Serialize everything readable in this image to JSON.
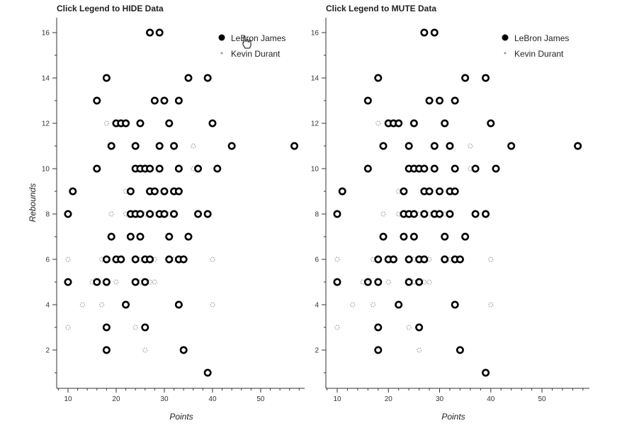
{
  "colors": {
    "lebron": "#000000",
    "durant": "#999999",
    "axis": "#333333"
  },
  "chart_data": [
    {
      "type": "scatter",
      "title": "Click Legend to HIDE Data",
      "xlabel": "Points",
      "ylabel": "Rebounds",
      "xlim": [
        8,
        58
      ],
      "ylim": [
        0,
        17
      ],
      "xticks": [
        10,
        20,
        30,
        40,
        50
      ],
      "yticks": [
        2,
        4,
        6,
        8,
        10,
        12,
        14,
        16
      ],
      "legend_position": "top-right",
      "legend": [
        "LeBron James",
        "Kevin Durant"
      ],
      "series": [
        {
          "name": "LeBron James",
          "points": [
            [
              27,
              16
            ],
            [
              29,
              16
            ],
            [
              18,
              14
            ],
            [
              35,
              14
            ],
            [
              39,
              14
            ],
            [
              16,
              13
            ],
            [
              28,
              13
            ],
            [
              30,
              13
            ],
            [
              33,
              13
            ],
            [
              20,
              12
            ],
            [
              21,
              12
            ],
            [
              22,
              12
            ],
            [
              25,
              12
            ],
            [
              31,
              12
            ],
            [
              40,
              12
            ],
            [
              19,
              11
            ],
            [
              24,
              11
            ],
            [
              29,
              11
            ],
            [
              32,
              11
            ],
            [
              44,
              11
            ],
            [
              57,
              11
            ],
            [
              16,
              10
            ],
            [
              24,
              10
            ],
            [
              25,
              10
            ],
            [
              26,
              10
            ],
            [
              27,
              10
            ],
            [
              29,
              10
            ],
            [
              33,
              10
            ],
            [
              37,
              10
            ],
            [
              41,
              10
            ],
            [
              11,
              9
            ],
            [
              23,
              9
            ],
            [
              27,
              9
            ],
            [
              28,
              9
            ],
            [
              30,
              9
            ],
            [
              32,
              9
            ],
            [
              33,
              9
            ],
            [
              10,
              8
            ],
            [
              23,
              8
            ],
            [
              24,
              8
            ],
            [
              25,
              8
            ],
            [
              27,
              8
            ],
            [
              29,
              8
            ],
            [
              30,
              8
            ],
            [
              32,
              8
            ],
            [
              37,
              8
            ],
            [
              39,
              8
            ],
            [
              19,
              7
            ],
            [
              23,
              7
            ],
            [
              25,
              7
            ],
            [
              31,
              7
            ],
            [
              35,
              7
            ],
            [
              18,
              6
            ],
            [
              20,
              6
            ],
            [
              21,
              6
            ],
            [
              24,
              6
            ],
            [
              26,
              6
            ],
            [
              27,
              6
            ],
            [
              31,
              6
            ],
            [
              33,
              6
            ],
            [
              34,
              6
            ],
            [
              10,
              5
            ],
            [
              16,
              5
            ],
            [
              18,
              5
            ],
            [
              24,
              5
            ],
            [
              26,
              5
            ],
            [
              22,
              4
            ],
            [
              33,
              4
            ],
            [
              18,
              3
            ],
            [
              26,
              3
            ],
            [
              18,
              2
            ],
            [
              34,
              2
            ],
            [
              39,
              1
            ]
          ]
        },
        {
          "name": "Kevin Durant",
          "points": [
            [
              30,
              13
            ],
            [
              18,
              12
            ],
            [
              36,
              11
            ],
            [
              16,
              10
            ],
            [
              24,
              10
            ],
            [
              29,
              10
            ],
            [
              36,
              10
            ],
            [
              22,
              9
            ],
            [
              23,
              9
            ],
            [
              33,
              9
            ],
            [
              19,
              8
            ],
            [
              22,
              8
            ],
            [
              26,
              8
            ],
            [
              28,
              8
            ],
            [
              31,
              8
            ],
            [
              19,
              7
            ],
            [
              25,
              7
            ],
            [
              17,
              6
            ],
            [
              20,
              6
            ],
            [
              25,
              6
            ],
            [
              28,
              6
            ],
            [
              32,
              6
            ],
            [
              40,
              6
            ],
            [
              10,
              6
            ],
            [
              15,
              5
            ],
            [
              20,
              5
            ],
            [
              25,
              5
            ],
            [
              27,
              5
            ],
            [
              28,
              5
            ],
            [
              13,
              4
            ],
            [
              17,
              4
            ],
            [
              24,
              3
            ],
            [
              26,
              2
            ],
            [
              40,
              4
            ],
            [
              10,
              3
            ]
          ]
        }
      ]
    },
    {
      "type": "scatter",
      "title": "Click Legend to MUTE Data",
      "xlabel": "Points",
      "ylabel": "",
      "xlim": [
        8,
        58
      ],
      "ylim": [
        0,
        17
      ],
      "xticks": [
        10,
        20,
        30,
        40,
        50
      ],
      "yticks": [
        2,
        4,
        6,
        8,
        10,
        12,
        14,
        16
      ],
      "legend_position": "top-right",
      "legend": [
        "LeBron James",
        "Kevin Durant"
      ],
      "series": [
        {
          "name": "LeBron James",
          "points": [
            [
              27,
              16
            ],
            [
              29,
              16
            ],
            [
              18,
              14
            ],
            [
              35,
              14
            ],
            [
              39,
              14
            ],
            [
              16,
              13
            ],
            [
              28,
              13
            ],
            [
              30,
              13
            ],
            [
              33,
              13
            ],
            [
              20,
              12
            ],
            [
              21,
              12
            ],
            [
              22,
              12
            ],
            [
              25,
              12
            ],
            [
              31,
              12
            ],
            [
              40,
              12
            ],
            [
              19,
              11
            ],
            [
              24,
              11
            ],
            [
              29,
              11
            ],
            [
              32,
              11
            ],
            [
              44,
              11
            ],
            [
              57,
              11
            ],
            [
              16,
              10
            ],
            [
              24,
              10
            ],
            [
              25,
              10
            ],
            [
              26,
              10
            ],
            [
              27,
              10
            ],
            [
              29,
              10
            ],
            [
              33,
              10
            ],
            [
              37,
              10
            ],
            [
              41,
              10
            ],
            [
              11,
              9
            ],
            [
              23,
              9
            ],
            [
              27,
              9
            ],
            [
              28,
              9
            ],
            [
              30,
              9
            ],
            [
              32,
              9
            ],
            [
              33,
              9
            ],
            [
              10,
              8
            ],
            [
              23,
              8
            ],
            [
              24,
              8
            ],
            [
              25,
              8
            ],
            [
              27,
              8
            ],
            [
              29,
              8
            ],
            [
              30,
              8
            ],
            [
              32,
              8
            ],
            [
              37,
              8
            ],
            [
              39,
              8
            ],
            [
              19,
              7
            ],
            [
              23,
              7
            ],
            [
              25,
              7
            ],
            [
              31,
              7
            ],
            [
              35,
              7
            ],
            [
              18,
              6
            ],
            [
              20,
              6
            ],
            [
              21,
              6
            ],
            [
              24,
              6
            ],
            [
              26,
              6
            ],
            [
              27,
              6
            ],
            [
              31,
              6
            ],
            [
              33,
              6
            ],
            [
              34,
              6
            ],
            [
              10,
              5
            ],
            [
              16,
              5
            ],
            [
              18,
              5
            ],
            [
              24,
              5
            ],
            [
              26,
              5
            ],
            [
              22,
              4
            ],
            [
              33,
              4
            ],
            [
              18,
              3
            ],
            [
              26,
              3
            ],
            [
              18,
              2
            ],
            [
              34,
              2
            ],
            [
              39,
              1
            ]
          ]
        },
        {
          "name": "Kevin Durant",
          "points": [
            [
              30,
              13
            ],
            [
              18,
              12
            ],
            [
              36,
              11
            ],
            [
              16,
              10
            ],
            [
              24,
              10
            ],
            [
              29,
              10
            ],
            [
              36,
              10
            ],
            [
              22,
              9
            ],
            [
              23,
              9
            ],
            [
              33,
              9
            ],
            [
              19,
              8
            ],
            [
              22,
              8
            ],
            [
              26,
              8
            ],
            [
              28,
              8
            ],
            [
              31,
              8
            ],
            [
              19,
              7
            ],
            [
              25,
              7
            ],
            [
              17,
              6
            ],
            [
              20,
              6
            ],
            [
              25,
              6
            ],
            [
              28,
              6
            ],
            [
              32,
              6
            ],
            [
              40,
              6
            ],
            [
              10,
              6
            ],
            [
              15,
              5
            ],
            [
              20,
              5
            ],
            [
              25,
              5
            ],
            [
              27,
              5
            ],
            [
              28,
              5
            ],
            [
              13,
              4
            ],
            [
              17,
              4
            ],
            [
              24,
              3
            ],
            [
              26,
              2
            ],
            [
              40,
              4
            ],
            [
              10,
              3
            ]
          ]
        }
      ]
    }
  ]
}
